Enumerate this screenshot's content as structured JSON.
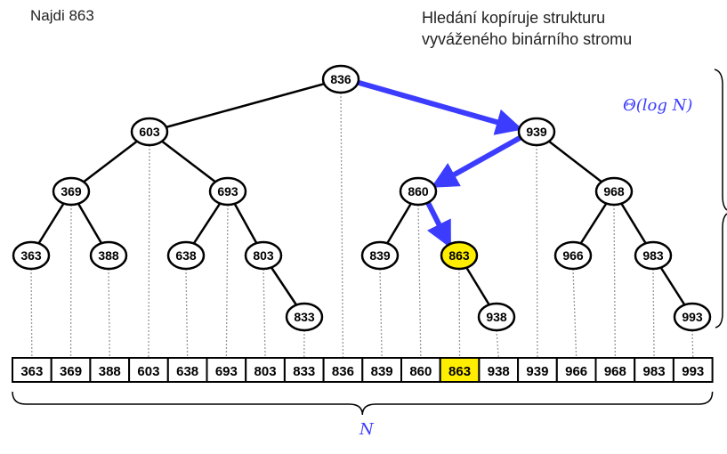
{
  "title": "Najdi 863",
  "subtitle": [
    "Hledání kopíruje strukturu",
    "vyváženého binárního stromu"
  ],
  "complexity_label": "Θ(log N)",
  "n_label": "N",
  "target": "863",
  "colors": {
    "highlight": "#ffee00",
    "path": "#3c3cff",
    "edge": "#000000",
    "dotted": "#999999"
  },
  "tree": {
    "nodes": [
      {
        "id": "836",
        "label": "836"
      },
      {
        "id": "603",
        "label": "603"
      },
      {
        "id": "939",
        "label": "939"
      },
      {
        "id": "369",
        "label": "369"
      },
      {
        "id": "693",
        "label": "693"
      },
      {
        "id": "860",
        "label": "860"
      },
      {
        "id": "968",
        "label": "968"
      },
      {
        "id": "363",
        "label": "363"
      },
      {
        "id": "388",
        "label": "388"
      },
      {
        "id": "638",
        "label": "638"
      },
      {
        "id": "803",
        "label": "803"
      },
      {
        "id": "839",
        "label": "839"
      },
      {
        "id": "863",
        "label": "863"
      },
      {
        "id": "966",
        "label": "966"
      },
      {
        "id": "983",
        "label": "983"
      },
      {
        "id": "833",
        "label": "833"
      },
      {
        "id": "938",
        "label": "938"
      },
      {
        "id": "993",
        "label": "993"
      }
    ],
    "edges": [
      [
        "836",
        "603"
      ],
      [
        "603",
        "369"
      ],
      [
        "603",
        "693"
      ],
      [
        "369",
        "363"
      ],
      [
        "369",
        "388"
      ],
      [
        "693",
        "638"
      ],
      [
        "693",
        "803"
      ],
      [
        "803",
        "833"
      ],
      [
        "939",
        "968"
      ],
      [
        "860",
        "839"
      ],
      [
        "968",
        "966"
      ],
      [
        "968",
        "983"
      ],
      [
        "983",
        "993"
      ],
      [
        "863",
        "938"
      ]
    ],
    "search_path": [
      "836",
      "939",
      "860",
      "863"
    ]
  },
  "array": [
    "363",
    "369",
    "388",
    "603",
    "638",
    "693",
    "803",
    "833",
    "836",
    "839",
    "860",
    "863",
    "938",
    "939",
    "966",
    "968",
    "983",
    "993"
  ]
}
